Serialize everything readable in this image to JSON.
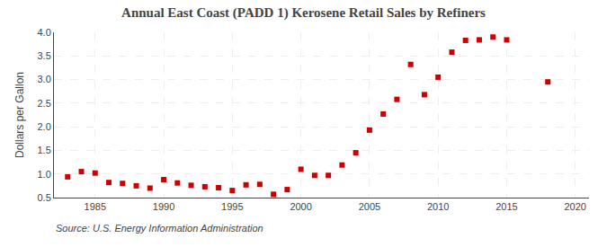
{
  "chart_data": {
    "type": "scatter",
    "title": "Annual East Coast (PADD 1) Kerosene Retail Sales by Refiners",
    "y_label": "Dollars per Gallon",
    "annotations": [
      "Source: U.S. Energy Information Administration"
    ],
    "x": [
      1983,
      1984,
      1985,
      1986,
      1987,
      1988,
      1989,
      1990,
      1991,
      1992,
      1993,
      1994,
      1995,
      1996,
      1997,
      1998,
      1999,
      2000,
      2001,
      2002,
      2003,
      2004,
      2005,
      2006,
      2007,
      2008,
      2009,
      2010,
      2011,
      2012,
      2013,
      2014,
      2015,
      2018
    ],
    "values": [
      0.94,
      1.05,
      1.02,
      0.82,
      0.8,
      0.75,
      0.7,
      0.88,
      0.81,
      0.76,
      0.73,
      0.71,
      0.65,
      0.77,
      0.78,
      0.57,
      0.67,
      1.1,
      0.97,
      0.97,
      1.19,
      1.45,
      1.93,
      2.27,
      2.58,
      3.32,
      2.68,
      3.05,
      3.58,
      3.83,
      3.84,
      3.9,
      3.84,
      2.95
    ],
    "color": "#cc0000",
    "marker": "square",
    "xlim": [
      1982,
      2021
    ],
    "xticks": [
      1985,
      1990,
      1995,
      2000,
      2005,
      2010,
      2015,
      2020
    ],
    "ylim": [
      0.5,
      4.0
    ],
    "yticks": [
      0.5,
      {
        "value": 1.0,
        "label": "1.0"
      },
      1.5,
      {
        "value": 2.0,
        "label": "2.0"
      },
      2.5,
      {
        "value": 3.0,
        "label": "3.0"
      },
      3.5,
      {
        "value": 4.0,
        "label": "4.0"
      }
    ],
    "grid": true
  }
}
